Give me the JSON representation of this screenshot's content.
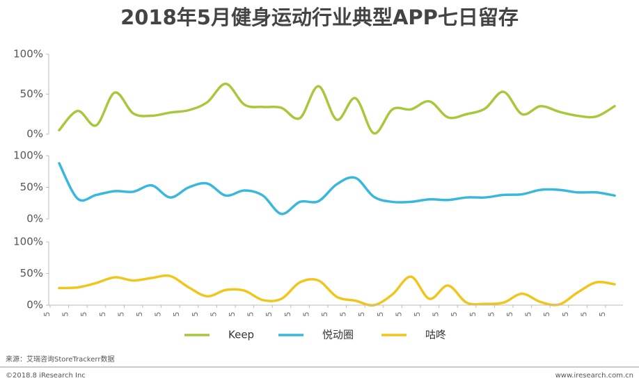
{
  "chart_data": {
    "type": "line",
    "title": "2018年5月健身运动行业典型APP七日留存",
    "categories": [
      "5",
      "5",
      "5",
      "5",
      "5",
      "5",
      "5",
      "5",
      "5",
      "5",
      "5",
      "5",
      "5",
      "5",
      "5",
      "5",
      "5",
      "5",
      "5",
      "5",
      "5",
      "5",
      "5",
      "5",
      "5",
      "5",
      "5",
      "5",
      "5",
      "5",
      "5"
    ],
    "series": [
      {
        "name": "Keep",
        "color": "#a8c83c",
        "ylim": [
          0,
          100
        ],
        "yticks": [
          {
            "value": 0,
            "label": "0%"
          },
          {
            "value": 50,
            "label": "50%"
          },
          {
            "value": 100,
            "label": "100%"
          }
        ],
        "values": [
          5,
          29,
          11,
          52,
          26,
          23,
          27,
          30,
          40,
          63,
          37,
          34,
          33,
          20,
          60,
          18,
          45,
          1,
          31,
          31,
          41,
          21,
          25,
          32,
          53,
          25,
          35,
          28,
          23,
          22,
          35
        ]
      },
      {
        "name": "悦动圈",
        "color": "#38b8dc",
        "ylim": [
          0,
          100
        ],
        "yticks": [
          {
            "value": 0,
            "label": "0%"
          },
          {
            "value": 50,
            "label": "50%"
          },
          {
            "value": 100,
            "label": "100%"
          }
        ],
        "values": [
          88,
          32,
          38,
          44,
          43,
          53,
          34,
          50,
          56,
          37,
          45,
          37,
          8,
          27,
          28,
          55,
          65,
          35,
          27,
          27,
          31,
          30,
          34,
          34,
          38,
          39,
          46,
          46,
          42,
          42,
          37
        ]
      },
      {
        "name": "咕咚",
        "color": "#f0c61c",
        "ylim": [
          0,
          100
        ],
        "yticks": [
          {
            "value": 0,
            "label": "0%"
          },
          {
            "value": 50,
            "label": "50%"
          },
          {
            "value": 100,
            "label": "100%"
          }
        ],
        "values": [
          27,
          28,
          35,
          44,
          39,
          43,
          46,
          28,
          14,
          24,
          23,
          8,
          10,
          36,
          39,
          13,
          7,
          0,
          17,
          45,
          10,
          31,
          4,
          2,
          4,
          18,
          5,
          1,
          20,
          36,
          33
        ]
      }
    ]
  },
  "source": "来源：艾瑞咨询StoreTrackerr数据",
  "copyright": "©2018.8 iResearch Inc",
  "website": "www.iresearch.com.cn"
}
